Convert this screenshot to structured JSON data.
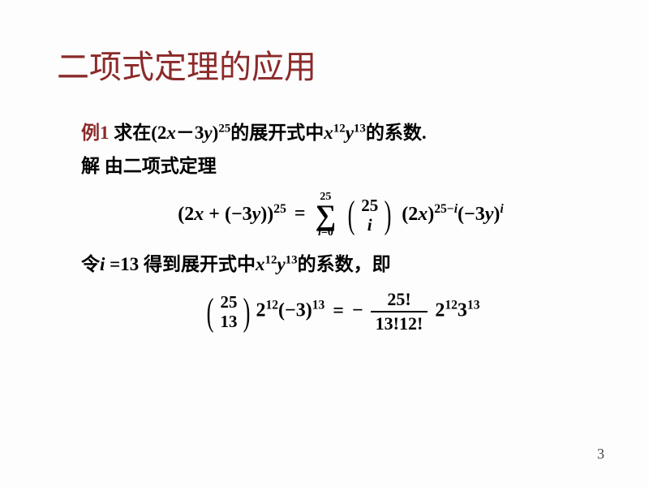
{
  "title": "二项式定理的应用",
  "example": {
    "label": "例1",
    "problem_before": " 求在(2",
    "problem_x": "x",
    "problem_minus": "－3",
    "problem_y": "y",
    "problem_exp": ")",
    "exp25": "25",
    "problem_mid": "的展开式中",
    "x12": "x",
    "e12": "12",
    "y13": "y",
    "e13": "13",
    "problem_end": "的系数."
  },
  "solution_label": "解",
  "solution_text": " 由二项式定理",
  "formula1": {
    "lhs_a": "(2",
    "lhs_x": "x",
    "lhs_plus": " + (−3",
    "lhs_y": "y",
    "lhs_close": "))",
    "lhs_exp": "25",
    "eq": "=",
    "sum_top": "25",
    "sum_bot_var": "i",
    "sum_bot_eq": "=0",
    "binom_top": "25",
    "binom_bot": "i",
    "rhs_a": "(2",
    "rhs_x": "x",
    "rhs_close1": ")",
    "rhs_exp1a": "25−",
    "rhs_exp1b": "i",
    "rhs_b": "(−3",
    "rhs_y": "y",
    "rhs_close2": ")",
    "rhs_exp2": "i"
  },
  "line3_a": "令",
  "line3_i": "i",
  "line3_b": " =13 得到展开式中",
  "line3_x": "x",
  "line3_e12": "12",
  "line3_y": "y",
  "line3_e13": "13",
  "line3_c": "的系数，即",
  "formula2": {
    "binom_top": "25",
    "binom_bot": "13",
    "a": "2",
    "a_exp": "12",
    "b": "(−3)",
    "b_exp": "13",
    "eq": "=",
    "neg": "−",
    "frac_num": "25!",
    "frac_den": "13!12!",
    "c": "2",
    "c_exp": "12",
    "d": "3",
    "d_exp": "13"
  },
  "page": "3",
  "colors": {
    "title": "#8b2a2a",
    "accent": "#8b2a2a",
    "text": "#000000",
    "bg": "#fdfdfd"
  },
  "fontsize": {
    "title": 40,
    "body": 23,
    "formula": 24
  }
}
